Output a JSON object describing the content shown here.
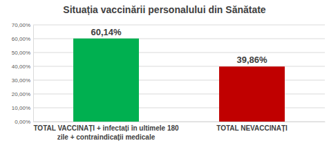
{
  "chart_data": {
    "type": "bar",
    "title": "Situația vaccinării personalului din Sănătate",
    "categories": [
      "TOTAL VACCINAȚI + infectați în ultimele 180 zile + contraindicații medicale",
      "TOTAL NEVACCINAȚI"
    ],
    "values": [
      60.14,
      39.86
    ],
    "value_labels": [
      "60,14%",
      "39,86%"
    ],
    "colors": [
      "#00b050",
      "#c00000"
    ],
    "ylim": [
      0,
      70
    ],
    "yticks": [
      {
        "value": 0,
        "label": "0,00%"
      },
      {
        "value": 10,
        "label": "10,00%"
      },
      {
        "value": 20,
        "label": "20,00%"
      },
      {
        "value": 30,
        "label": "30,00%"
      },
      {
        "value": 40,
        "label": "40,00%"
      },
      {
        "value": 50,
        "label": "50,00%"
      },
      {
        "value": 60,
        "label": "60,00%"
      },
      {
        "value": 70,
        "label": "70,00%"
      }
    ],
    "grid": true,
    "data_labels": true
  }
}
